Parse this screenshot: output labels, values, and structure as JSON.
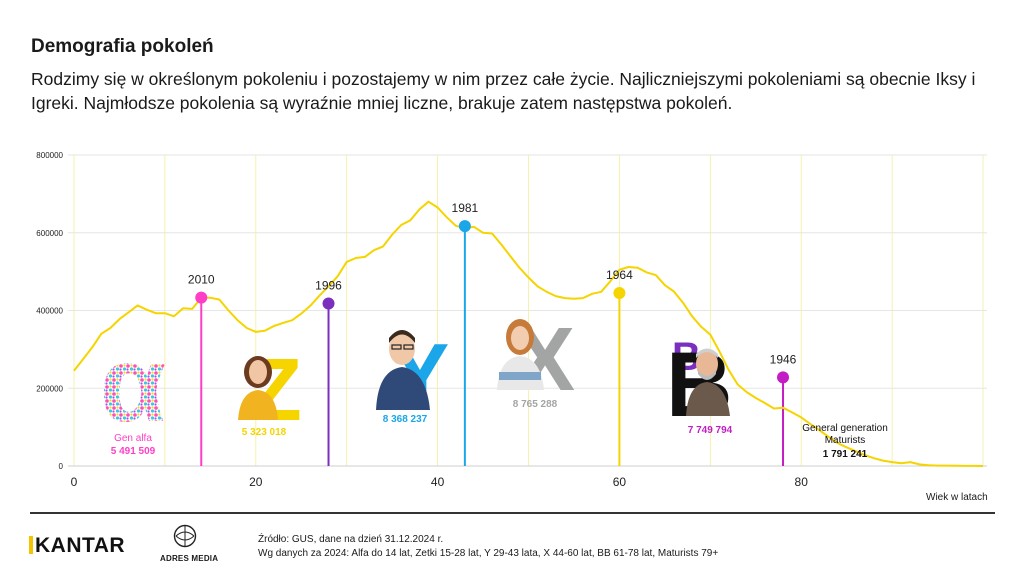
{
  "title": "Demografia pokoleń",
  "subtitle": "Rodzimy się w określonym pokoleniu i pozostajemy w nim przez całe życie. Najliczniejszymi pokoleniami są obecnie Iksy i Igreki. Najmłodsze pokolenia są wyraźnie mniej liczne, brakuje zatem następstwa pokoleń.",
  "footer": {
    "brand": "KANTAR",
    "partner": "ADRES MEDIA",
    "source_line1": "Źródło: GUS, dane na dzień 31.12.2024 r.",
    "source_line2": "Wg danych za 2024: Alfa do 14 lat, Zetki 15-28 lat, Y 29-43 lata, X 44-60 lat, BB 61-78 lat, Maturists 79+"
  },
  "chart_data": {
    "type": "line",
    "title": "",
    "xlabel": "Wiek w latach",
    "ylabel": "",
    "xlim": [
      0,
      100
    ],
    "ylim": [
      0,
      800000
    ],
    "x_ticks": [
      0,
      20,
      40,
      60,
      80
    ],
    "y_ticks": [
      0,
      200000,
      400000,
      600000,
      800000
    ],
    "y_tick_labels": [
      "0",
      "200000",
      "400000",
      "600000",
      "800000"
    ],
    "grid": "vertical",
    "series": [
      {
        "name": "",
        "color": "#f5d400",
        "x": [
          0,
          1,
          2,
          3,
          4,
          5,
          6,
          7,
          8,
          9,
          10,
          11,
          12,
          13,
          14,
          15,
          16,
          17,
          18,
          19,
          20,
          21,
          22,
          23,
          24,
          25,
          26,
          27,
          28,
          29,
          30,
          31,
          32,
          33,
          34,
          35,
          36,
          37,
          38,
          39,
          40,
          41,
          42,
          43,
          44,
          45,
          46,
          47,
          48,
          49,
          50,
          51,
          52,
          53,
          54,
          55,
          56,
          57,
          58,
          59,
          60,
          61,
          62,
          63,
          64,
          65,
          66,
          67,
          68,
          69,
          70,
          71,
          72,
          73,
          74,
          75,
          76,
          77,
          78,
          79,
          80,
          81,
          82,
          83,
          84,
          85,
          86,
          87,
          88,
          89,
          90,
          91,
          92,
          93,
          94,
          95,
          96,
          97,
          98,
          99,
          100
        ],
        "values": [
          245000,
          275000,
          305000,
          340000,
          355000,
          378000,
          395000,
          413000,
          402000,
          393000,
          393000,
          385000,
          406000,
          404000,
          433000,
          433000,
          428000,
          400000,
          375000,
          355000,
          345000,
          348000,
          360000,
          368000,
          375000,
          392000,
          412000,
          438000,
          462000,
          488000,
          525000,
          535000,
          538000,
          555000,
          565000,
          595000,
          620000,
          632000,
          660000,
          680000,
          665000,
          640000,
          618000,
          612000,
          615000,
          600000,
          598000,
          570000,
          540000,
          510000,
          485000,
          462000,
          448000,
          437000,
          432000,
          430000,
          432000,
          443000,
          448000,
          475000,
          505000,
          512000,
          510000,
          498000,
          491000,
          465000,
          449000,
          420000,
          385000,
          358000,
          338000,
          295000,
          248000,
          210000,
          190000,
          175000,
          162000,
          148000,
          150000,
          138000,
          125000,
          108000,
          92000,
          75000,
          59000,
          48000,
          38000,
          28000,
          20000,
          14000,
          10000,
          7000,
          10000,
          4000,
          2000,
          1000,
          1000,
          500,
          300,
          200,
          100
        ]
      }
    ],
    "generations": [
      {
        "key": "alfa",
        "year": "2010",
        "age": 14,
        "value": 433000,
        "color": "#ff3ec8",
        "name": "Gen alfa",
        "count": "5 491 509",
        "letter": "α"
      },
      {
        "key": "z",
        "year": "1996",
        "age": 28,
        "value": 418000,
        "color": "#7b2fbe",
        "name": "",
        "count": "5 323 018",
        "letter": "Z"
      },
      {
        "key": "y",
        "year": "1981",
        "age": 43,
        "value": 617000,
        "color": "#1aa6e8",
        "name": "",
        "count": "8 368 237",
        "letter": "Y"
      },
      {
        "key": "x",
        "year": "1964",
        "age": 60,
        "value": 445000,
        "color": "#f5d400",
        "name": "",
        "count": "8 765 288",
        "letter": "X"
      },
      {
        "key": "bb",
        "year": "",
        "age": null,
        "value": null,
        "color": "#c21ec4",
        "name": "",
        "count": "7 749 794",
        "letter": "BB"
      },
      {
        "key": "maturists",
        "year": "1946",
        "age": 78,
        "value": 228000,
        "color": "#c21ec4",
        "name": "General generation\nMaturists",
        "count": "1 791 241",
        "letter": ""
      }
    ]
  }
}
